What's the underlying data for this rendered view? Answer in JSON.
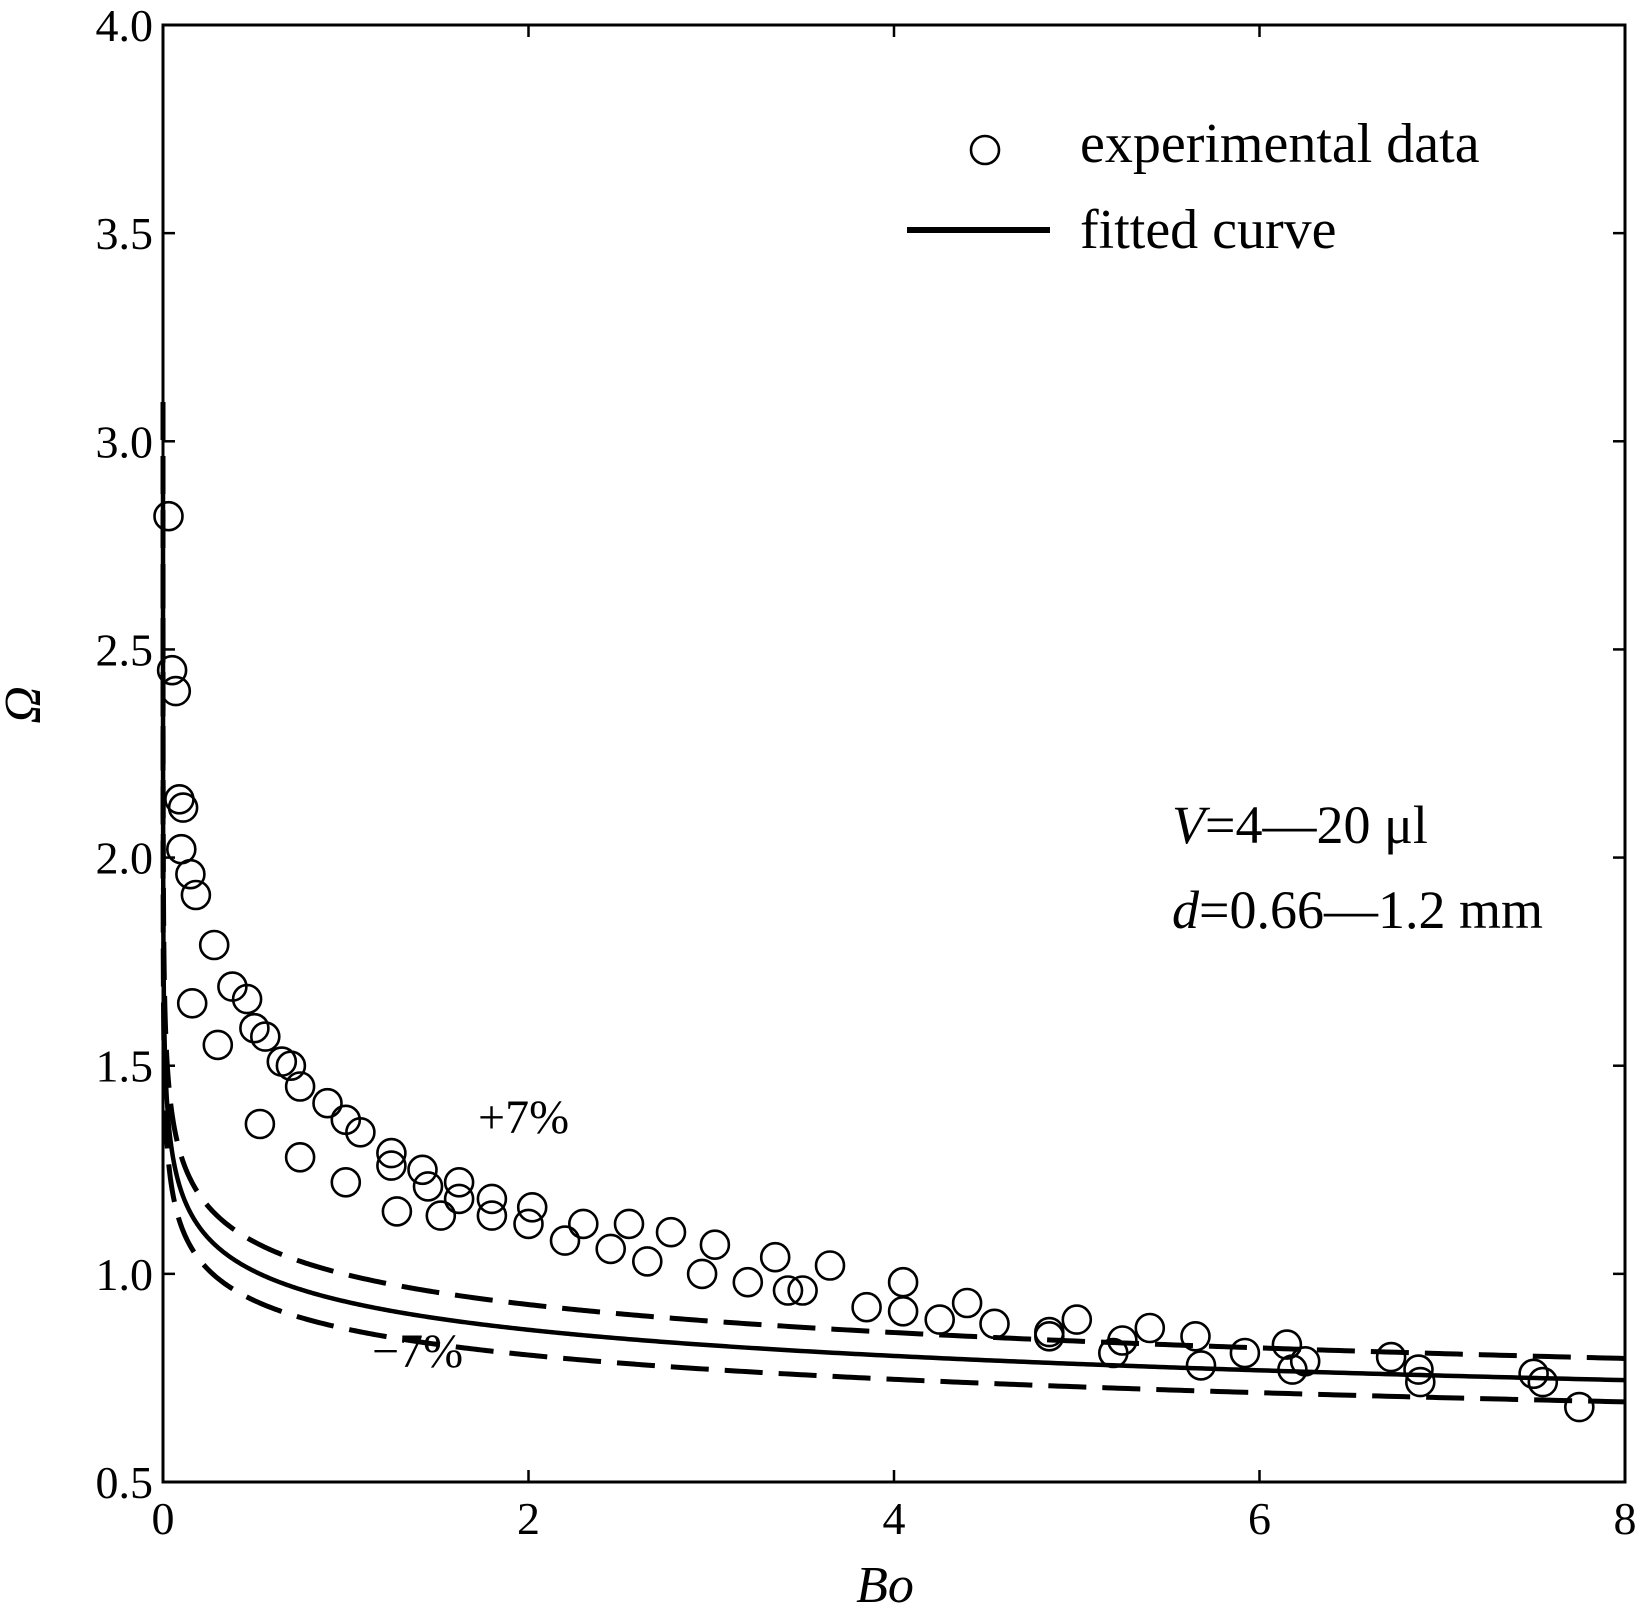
{
  "chart_data": {
    "type": "scatter",
    "xlabel": "Bo",
    "ylabel": "Ω",
    "xlim": [
      0,
      8
    ],
    "ylim": [
      0.5,
      4.0
    ],
    "xticks": [
      0,
      2,
      4,
      6,
      8
    ],
    "yticks": [
      0.5,
      1.0,
      1.5,
      2.0,
      2.5,
      3.0,
      3.5,
      4.0
    ],
    "xtick_labels": [
      "0",
      "2",
      "4",
      "6",
      "8"
    ],
    "ytick_labels": [
      "0.5",
      "1.0",
      "1.5",
      "2.0",
      "2.5",
      "3.0",
      "3.5",
      "4.0"
    ],
    "grid": false,
    "legend": {
      "position": "top-right",
      "entries": [
        {
          "label": "experimental data",
          "marker": "open-circle"
        },
        {
          "label": "fitted curve",
          "marker": "solid-line"
        }
      ]
    },
    "annotations": {
      "upper_band": "+7%",
      "lower_band": "−7%",
      "volume_var": "V",
      "volume_value": "=4—20 μl",
      "diameter_var": "d",
      "diameter_value": "=0.66—1.2 mm"
    },
    "fit": {
      "form": "power",
      "a": 0.9333,
      "b": -0.1086,
      "band": 0.07
    },
    "series": [
      {
        "name": "experimental data",
        "style": "open-circle",
        "points": [
          [
            0.03,
            2.82
          ],
          [
            0.05,
            2.45
          ],
          [
            0.07,
            2.4
          ],
          [
            0.09,
            2.14
          ],
          [
            0.11,
            2.12
          ],
          [
            0.1,
            2.02
          ],
          [
            0.15,
            1.96
          ],
          [
            0.18,
            1.91
          ],
          [
            0.28,
            1.79
          ],
          [
            0.16,
            1.65
          ],
          [
            0.3,
            1.55
          ],
          [
            0.38,
            1.69
          ],
          [
            0.46,
            1.66
          ],
          [
            0.5,
            1.59
          ],
          [
            0.56,
            1.57
          ],
          [
            0.65,
            1.51
          ],
          [
            0.7,
            1.5
          ],
          [
            0.53,
            1.36
          ],
          [
            0.75,
            1.45
          ],
          [
            0.9,
            1.41
          ],
          [
            1.0,
            1.37
          ],
          [
            1.08,
            1.34
          ],
          [
            0.75,
            1.28
          ],
          [
            1.0,
            1.22
          ],
          [
            1.25,
            1.29
          ],
          [
            1.25,
            1.26
          ],
          [
            1.42,
            1.25
          ],
          [
            1.45,
            1.21
          ],
          [
            1.62,
            1.22
          ],
          [
            1.62,
            1.18
          ],
          [
            1.8,
            1.18
          ],
          [
            1.8,
            1.14
          ],
          [
            1.28,
            1.15
          ],
          [
            1.52,
            1.14
          ],
          [
            2.02,
            1.16
          ],
          [
            2.0,
            1.12
          ],
          [
            2.3,
            1.12
          ],
          [
            2.2,
            1.08
          ],
          [
            2.55,
            1.12
          ],
          [
            2.45,
            1.06
          ],
          [
            2.65,
            1.03
          ],
          [
            2.78,
            1.1
          ],
          [
            3.02,
            1.07
          ],
          [
            2.95,
            1.0
          ],
          [
            3.2,
            0.98
          ],
          [
            3.35,
            1.04
          ],
          [
            3.42,
            0.96
          ],
          [
            3.5,
            0.96
          ],
          [
            3.65,
            1.02
          ],
          [
            3.85,
            0.92
          ],
          [
            4.05,
            0.98
          ],
          [
            4.05,
            0.91
          ],
          [
            4.25,
            0.89
          ],
          [
            4.4,
            0.93
          ],
          [
            4.55,
            0.88
          ],
          [
            4.85,
            0.86
          ],
          [
            4.85,
            0.85
          ],
          [
            5.0,
            0.89
          ],
          [
            5.2,
            0.81
          ],
          [
            5.25,
            0.84
          ],
          [
            5.4,
            0.87
          ],
          [
            5.65,
            0.85
          ],
          [
            5.68,
            0.78
          ],
          [
            5.92,
            0.81
          ],
          [
            6.15,
            0.83
          ],
          [
            6.18,
            0.77
          ],
          [
            6.25,
            0.79
          ],
          [
            6.72,
            0.8
          ],
          [
            6.87,
            0.77
          ],
          [
            6.88,
            0.74
          ],
          [
            7.5,
            0.76
          ],
          [
            7.55,
            0.74
          ],
          [
            7.75,
            0.68
          ]
        ]
      },
      {
        "name": "fitted curve",
        "style": "solid-line"
      },
      {
        "name": "+7%",
        "style": "dashed-line"
      },
      {
        "name": "−7%",
        "style": "dashed-line"
      }
    ]
  }
}
